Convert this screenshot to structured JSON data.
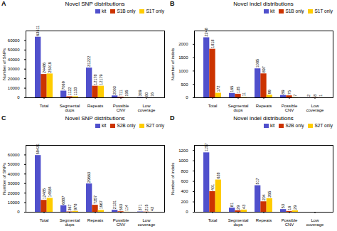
{
  "chart_data": [
    {
      "type": "bar",
      "title": "Novel SNP distributions",
      "annotations": [
        "A"
      ],
      "ylabel": "Number of SNPs",
      "categories": [
        "Total",
        "Segmental dups",
        "Repeats",
        "Possible CNV",
        "Low coverage"
      ],
      "series": [
        {
          "name": "kit",
          "color": "#5050cc",
          "values": [
            63511,
            7069,
            31222,
            2003,
            309
          ]
        },
        {
          "name": "S1B only",
          "color": "#cc3300",
          "values": [
            24486,
            1122,
            12178,
            711,
            80
          ]
        },
        {
          "name": "S1T only",
          "color": "#ffcc00",
          "values": [
            25019,
            1133,
            12179,
            195,
            16
          ]
        }
      ],
      "ylim": [
        0,
        70000
      ],
      "yticks": [
        0,
        10000,
        20000,
        30000,
        40000,
        50000,
        60000
      ],
      "legend": "upper right",
      "grid": false,
      "data_labels": true
    },
    {
      "type": "bar",
      "title": "Novel indel distributions",
      "annotations": [
        "B"
      ],
      "ylabel": "Number of indels",
      "categories": [
        "Total",
        "Segmental dups",
        "Repeats",
        "Possible CNV",
        "Low coverage"
      ],
      "series": [
        {
          "name": "kit",
          "color": "#5050cc",
          "values": [
            2248,
            165,
            1085,
            89,
            2
          ]
        },
        {
          "name": "S1B only",
          "color": "#cc3300",
          "values": [
            1818,
            135,
            897,
            75,
            8
          ]
        },
        {
          "name": "S1T only",
          "color": "#ffcc00",
          "values": [
            172,
            11,
            99,
            7,
            1
          ]
        }
      ],
      "ylim": [
        0,
        2500
      ],
      "yticks": [
        0,
        500,
        1000,
        1500,
        2000
      ],
      "legend": "upper right",
      "grid": false,
      "data_labels": true
    },
    {
      "type": "bar",
      "title": "Novel SNP distributions",
      "annotations": [
        "C"
      ],
      "ylabel": "Number of SNPs",
      "categories": [
        "Total",
        "Segmental dups",
        "Repeats",
        "Possible CNV",
        "Low coverage"
      ],
      "series": [
        {
          "name": "kit",
          "color": "#5050cc",
          "values": [
            59431,
            6887,
            29663,
            2131,
            371
          ]
        },
        {
          "name": "S2B only",
          "color": "#cc3300",
          "values": [
            12485,
            367,
            7357,
            583,
            215
          ]
        },
        {
          "name": "S2T only",
          "color": "#ffcc00",
          "values": [
            14584,
            978,
            1967,
            114,
            43
          ]
        }
      ],
      "ylim": [
        0,
        70000
      ],
      "yticks": [
        0,
        10000,
        20000,
        30000,
        40000,
        50000,
        60000
      ],
      "legend": "upper right",
      "grid": false,
      "data_labels": true
    },
    {
      "type": "bar",
      "title": "Novel indel distributions",
      "annotations": [
        "D"
      ],
      "ylabel": "Number of indels",
      "categories": [
        "Total",
        "Segmental dups",
        "Repeats",
        "Possible CNV",
        "Low coverage"
      ],
      "series": [
        {
          "name": "kit",
          "color": "#5050cc",
          "values": [
            1157,
            81,
            517,
            53,
            0
          ],
          "value_labels": [
            "1157",
            "81",
            "517",
            "53",
            null
          ]
        },
        {
          "name": "S2B only",
          "color": "#cc3300",
          "values": [
            401,
            29,
            204,
            16,
            0
          ],
          "value_labels": [
            "401",
            "29",
            "204",
            "16",
            null
          ]
        },
        {
          "name": "S2T only",
          "color": "#ffcc00",
          "values": [
            628,
            43,
            265,
            29,
            0
          ],
          "value_labels": [
            "628",
            "43",
            "265",
            "29",
            null
          ]
        }
      ],
      "ylim": [
        0,
        1300
      ],
      "yticks": [
        0,
        200,
        400,
        600,
        800,
        1000,
        1200
      ],
      "legend": "upper right",
      "grid": false,
      "data_labels": true
    }
  ]
}
